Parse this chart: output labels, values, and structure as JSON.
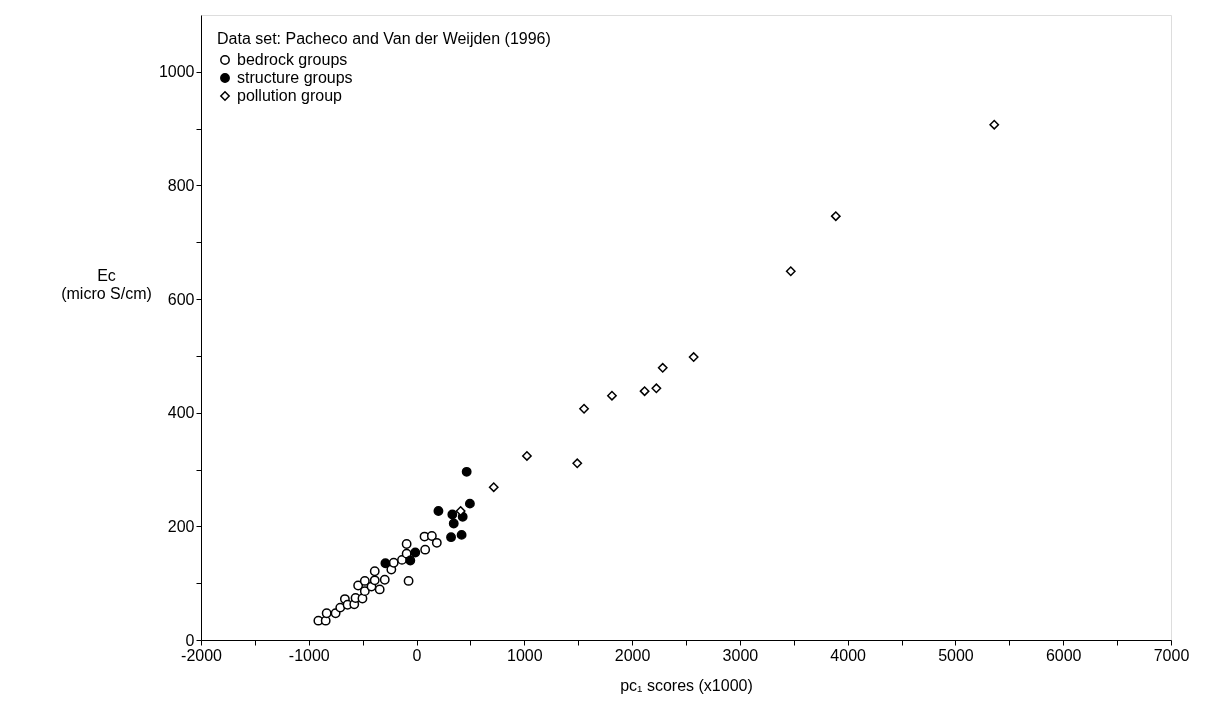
{
  "chart_data": {
    "type": "scatter",
    "xlabel": "pc₁ scores (x1000)",
    "ylabel": "Ec\n(micro S/cm)",
    "legend_title": "Data set: Pacheco and Van der Weijden (1996)",
    "legend": "top left",
    "xlim": [
      -2000,
      7000
    ],
    "ylim": [
      0,
      1100
    ],
    "xticks": [
      -2000,
      {
        "value": -1500,
        "label": null
      },
      -1000,
      {
        "value": -500,
        "label": null
      },
      0,
      {
        "value": 500,
        "label": null
      },
      1000,
      {
        "value": 1500,
        "label": null
      },
      2000,
      {
        "value": 2500,
        "label": null
      },
      3000,
      {
        "value": 3500,
        "label": null
      },
      4000,
      {
        "value": 4500,
        "label": null
      },
      5000,
      {
        "value": 5500,
        "label": null
      },
      6000,
      {
        "value": 6500,
        "label": null
      },
      7000
    ],
    "yticks": [
      0,
      {
        "value": 100,
        "label": null
      },
      200,
      {
        "value": 300,
        "label": null
      },
      400,
      {
        "value": 500,
        "label": null
      },
      600,
      {
        "value": 700,
        "label": null
      },
      800,
      {
        "value": 900,
        "label": null
      },
      1000
    ],
    "grid": false,
    "series": [
      {
        "name": "bedrock groups",
        "color": "#ffffff",
        "marker": "circle",
        "x": [
          -911,
          -843,
          -834,
          -751,
          -708,
          -665,
          -640,
          -578,
          -566,
          -542,
          -502,
          -480,
          -480,
          -418,
          -388,
          -388,
          -342,
          -295,
          -234,
          -212,
          -135,
          -92,
          -92,
          -74,
          74,
          80,
          142,
          188
        ],
        "values": [
          34,
          34,
          47,
          47,
          57,
          72,
          62,
          63,
          74,
          96,
          73,
          104,
          86,
          94,
          105,
          121,
          89,
          106,
          124,
          136,
          141,
          169,
          152,
          104,
          182,
          159,
          183,
          171
        ]
      },
      {
        "name": "structure groups",
        "color": "#000000",
        "marker": "circle",
        "x": [
          -289,
          -58,
          -12,
          203,
          332,
          345,
          428,
          320,
          418,
          465,
          495
        ],
        "values": [
          135,
          140,
          154,
          227,
          221,
          205,
          217,
          181,
          185,
          296,
          240
        ]
      },
      {
        "name": "pollution group",
        "color": "#ffffff",
        "marker": "diamond",
        "x": [
          409,
          716,
          1024,
          1491,
          1554,
          1813,
          2116,
          2225,
          2284,
          2571,
          3472,
          3890,
          5360
        ],
        "values": [
          227,
          269,
          324,
          311,
          407,
          430,
          438,
          443,
          479,
          498,
          649,
          746,
          907
        ]
      }
    ]
  }
}
